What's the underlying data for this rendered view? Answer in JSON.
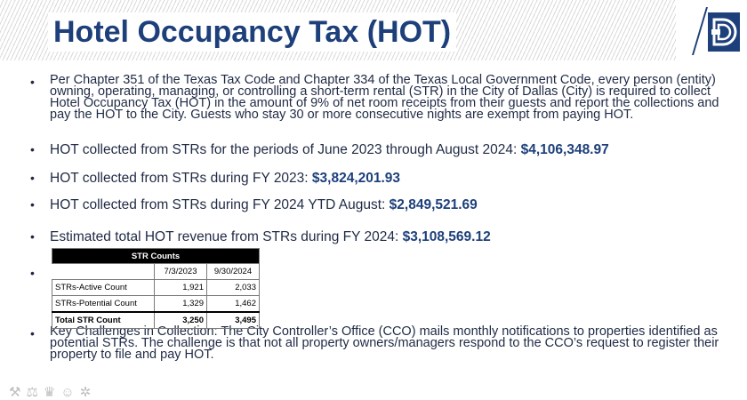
{
  "title": "Hotel Occupancy Tax (HOT)",
  "bullets": [
    {
      "text": "Per Chapter 351 of the Texas Tax Code and Chapter 334 of the Texas Local Government Code, every person (entity) owning, operating, managing, or controlling a short-term rental (STR) in the City of Dallas (City) is required to collect Hotel Occupancy Tax (HOT) in the amount of 9% of net room receipts from their guests and report the collections and pay the HOT to the City. Guests who stay 30 or more consecutive nights are exempt from paying HOT.",
      "amount": ""
    },
    {
      "text": "HOT collected from STRs for the periods of June 2023 through August 2024: ",
      "amount": "$4,106,348.97"
    },
    {
      "text": "HOT collected from STRs during FY 2023: ",
      "amount": "$3,824,201.93"
    },
    {
      "text": "HOT collected from STRs during FY 2024 YTD August: ",
      "amount": "$2,849,521.69"
    },
    {
      "text": "Estimated total HOT revenue from STRs during FY 2024: ",
      "amount": "$3,108,569.12"
    },
    {
      "text": "Key Challenges in Collection: The City Controller’s Office (CCO) mails monthly notifications to properties identified as potential STRs. The challenge is that not all property owners/managers respond to the CCO’s request to register their property to file and pay HOT.",
      "amount": ""
    }
  ],
  "bullet_glyph": "•",
  "table": {
    "caption": "STR Counts",
    "columns": [
      "7/3/2023",
      "9/30/2024"
    ],
    "rows": [
      {
        "label": "STRs-Active Count",
        "values": [
          "1,921",
          "2,033"
        ]
      },
      {
        "label": "STRs-Potential Count",
        "values": [
          "1,329",
          "1,462"
        ]
      },
      {
        "label": "Total STR Count",
        "values": [
          "3,250",
          "3,495"
        ]
      }
    ]
  },
  "colors": {
    "title": "#1d3f7a",
    "logo": "#1d3f7a",
    "amount": "#1d3f7a"
  },
  "footer_icons": [
    "tools-icon",
    "scales-icon",
    "trophy-icon",
    "people-icon",
    "network-icon"
  ]
}
